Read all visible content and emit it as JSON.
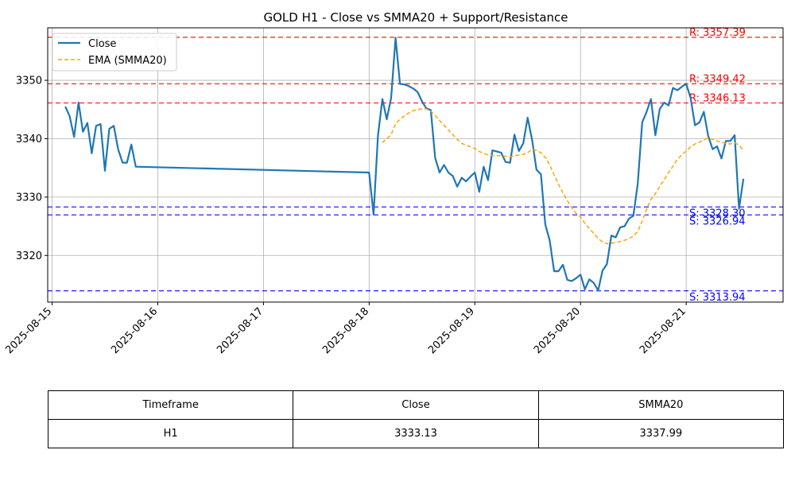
{
  "chart_data": {
    "type": "line",
    "title": "GOLD H1 - Close vs SMMA20 + Support/Resistance",
    "xlabel": "",
    "ylabel": "",
    "ylim": [
      3312,
      3359
    ],
    "xlim": [
      "2025-08-14T23:00",
      "2025-08-21T22:00"
    ],
    "x_ticks": [
      "2025-08-15",
      "2025-08-16",
      "2025-08-17",
      "2025-08-18",
      "2025-08-19",
      "2025-08-20",
      "2025-08-21"
    ],
    "y_ticks": [
      3320,
      3330,
      3340,
      3350
    ],
    "grid": true,
    "legend_position": "upper-left",
    "series": [
      {
        "name": "Close",
        "color": "#1f77b4",
        "style": "solid",
        "points": [
          [
            "2025-08-15T03:00",
            3345.5
          ],
          [
            "2025-08-15T04:00",
            3343.8
          ],
          [
            "2025-08-15T05:00",
            3340.3
          ],
          [
            "2025-08-15T06:00",
            3346.2
          ],
          [
            "2025-08-15T07:00",
            3341.2
          ],
          [
            "2025-08-15T08:00",
            3342.7
          ],
          [
            "2025-08-15T09:00",
            3337.5
          ],
          [
            "2025-08-15T10:00",
            3342.2
          ],
          [
            "2025-08-15T11:00",
            3342.5
          ],
          [
            "2025-08-15T12:00",
            3334.5
          ],
          [
            "2025-08-15T13:00",
            3341.7
          ],
          [
            "2025-08-15T14:00",
            3342.2
          ],
          [
            "2025-08-15T15:00",
            3338.2
          ],
          [
            "2025-08-15T16:00",
            3335.9
          ],
          [
            "2025-08-15T17:00",
            3335.9
          ],
          [
            "2025-08-15T18:00",
            3339.0
          ],
          [
            "2025-08-15T19:00",
            3335.2
          ],
          [
            "2025-08-18T00:00",
            3334.2
          ],
          [
            "2025-08-18T01:00",
            3327.0
          ],
          [
            "2025-08-18T02:00",
            3340.5
          ],
          [
            "2025-08-18T03:00",
            3346.8
          ],
          [
            "2025-08-18T04:00",
            3343.3
          ],
          [
            "2025-08-18T05:00",
            3347.0
          ],
          [
            "2025-08-18T06:00",
            3357.3
          ],
          [
            "2025-08-18T07:00",
            3349.4
          ],
          [
            "2025-08-18T08:00",
            3349.3
          ],
          [
            "2025-08-18T09:00",
            3349.0
          ],
          [
            "2025-08-18T10:00",
            3348.6
          ],
          [
            "2025-08-18T11:00",
            3348.0
          ],
          [
            "2025-08-18T12:00",
            3346.4
          ],
          [
            "2025-08-18T13:00",
            3345.2
          ],
          [
            "2025-08-18T14:00",
            3344.9
          ],
          [
            "2025-08-18T15:00",
            3336.7
          ],
          [
            "2025-08-18T16:00",
            3334.2
          ],
          [
            "2025-08-18T17:00",
            3335.5
          ],
          [
            "2025-08-18T18:00",
            3334.2
          ],
          [
            "2025-08-18T19:00",
            3333.6
          ],
          [
            "2025-08-18T20:00",
            3331.8
          ],
          [
            "2025-08-18T21:00",
            3333.3
          ],
          [
            "2025-08-18T22:00",
            3332.7
          ],
          [
            "2025-08-18T23:00",
            3333.5
          ],
          [
            "2025-08-19T00:00",
            3334.2
          ],
          [
            "2025-08-19T01:00",
            3330.9
          ],
          [
            "2025-08-19T02:00",
            3335.2
          ],
          [
            "2025-08-19T03:00",
            3332.9
          ],
          [
            "2025-08-19T04:00",
            3338.0
          ],
          [
            "2025-08-19T05:00",
            3337.8
          ],
          [
            "2025-08-19T06:00",
            3337.6
          ],
          [
            "2025-08-19T07:00",
            3336.0
          ],
          [
            "2025-08-19T08:00",
            3335.9
          ],
          [
            "2025-08-19T09:00",
            3340.7
          ],
          [
            "2025-08-19T10:00",
            3337.9
          ],
          [
            "2025-08-19T11:00",
            3339.2
          ],
          [
            "2025-08-19T12:00",
            3343.6
          ],
          [
            "2025-08-19T13:00",
            3339.8
          ],
          [
            "2025-08-19T14:00",
            3334.7
          ],
          [
            "2025-08-19T15:00",
            3333.9
          ],
          [
            "2025-08-19T16:00",
            3325.3
          ],
          [
            "2025-08-19T17:00",
            3322.6
          ],
          [
            "2025-08-19T18:00",
            3317.3
          ],
          [
            "2025-08-19T19:00",
            3317.3
          ],
          [
            "2025-08-19T20:00",
            3318.4
          ],
          [
            "2025-08-19T21:00",
            3315.8
          ],
          [
            "2025-08-19T22:00",
            3315.6
          ],
          [
            "2025-08-19T23:00",
            3316.1
          ],
          [
            "2025-08-20T00:00",
            3316.7
          ],
          [
            "2025-08-20T01:00",
            3314.2
          ],
          [
            "2025-08-20T02:00",
            3315.9
          ],
          [
            "2025-08-20T03:00",
            3315.3
          ],
          [
            "2025-08-20T04:00",
            3314.0
          ],
          [
            "2025-08-20T05:00",
            3317.4
          ],
          [
            "2025-08-20T06:00",
            3318.5
          ],
          [
            "2025-08-20T07:00",
            3323.4
          ],
          [
            "2025-08-20T08:00",
            3323.1
          ],
          [
            "2025-08-20T09:00",
            3324.8
          ],
          [
            "2025-08-20T10:00",
            3325.0
          ],
          [
            "2025-08-20T11:00",
            3326.3
          ],
          [
            "2025-08-20T12:00",
            3326.8
          ],
          [
            "2025-08-20T13:00",
            3332.3
          ],
          [
            "2025-08-20T14:00",
            3342.8
          ],
          [
            "2025-08-20T15:00",
            3344.6
          ],
          [
            "2025-08-20T16:00",
            3346.8
          ],
          [
            "2025-08-20T17:00",
            3340.6
          ],
          [
            "2025-08-20T18:00",
            3345.1
          ],
          [
            "2025-08-20T19:00",
            3346.2
          ],
          [
            "2025-08-20T20:00",
            3345.7
          ],
          [
            "2025-08-20T21:00",
            3348.7
          ],
          [
            "2025-08-20T22:00",
            3348.3
          ],
          [
            "2025-08-20T23:00",
            3348.9
          ],
          [
            "2025-08-21T00:00",
            3349.4
          ],
          [
            "2025-08-21T01:00",
            3347.0
          ],
          [
            "2025-08-21T02:00",
            3342.3
          ],
          [
            "2025-08-21T03:00",
            3342.8
          ],
          [
            "2025-08-21T04:00",
            3344.6
          ],
          [
            "2025-08-21T05:00",
            3340.5
          ],
          [
            "2025-08-21T06:00",
            3338.2
          ],
          [
            "2025-08-21T07:00",
            3338.7
          ],
          [
            "2025-08-21T08:00",
            3336.6
          ],
          [
            "2025-08-21T09:00",
            3339.6
          ],
          [
            "2025-08-21T10:00",
            3339.6
          ],
          [
            "2025-08-21T11:00",
            3340.6
          ],
          [
            "2025-08-21T12:00",
            3328.0
          ],
          [
            "2025-08-21T13:00",
            3333.13
          ]
        ]
      },
      {
        "name": "EMA (SMMA20)",
        "color": "#ffa500",
        "style": "dashed",
        "points": [
          [
            "2025-08-18T03:00",
            3339.3
          ],
          [
            "2025-08-18T04:00",
            3340.0
          ],
          [
            "2025-08-18T05:00",
            3340.7
          ],
          [
            "2025-08-18T06:00",
            3342.6
          ],
          [
            "2025-08-18T07:00",
            3343.3
          ],
          [
            "2025-08-18T08:00",
            3343.9
          ],
          [
            "2025-08-18T09:00",
            3344.4
          ],
          [
            "2025-08-18T10:00",
            3344.8
          ],
          [
            "2025-08-18T11:00",
            3345.0
          ],
          [
            "2025-08-18T12:00",
            3345.1
          ],
          [
            "2025-08-18T13:00",
            3345.1
          ],
          [
            "2025-08-18T14:00",
            3344.7
          ],
          [
            "2025-08-18T15:00",
            3344.0
          ],
          [
            "2025-08-18T16:00",
            3343.1
          ],
          [
            "2025-08-18T17:00",
            3342.3
          ],
          [
            "2025-08-18T18:00",
            3341.5
          ],
          [
            "2025-08-18T19:00",
            3340.7
          ],
          [
            "2025-08-18T20:00",
            3339.9
          ],
          [
            "2025-08-18T21:00",
            3339.2
          ],
          [
            "2025-08-18T22:00",
            3338.9
          ],
          [
            "2025-08-18T23:00",
            3338.6
          ],
          [
            "2025-08-19T00:00",
            3338.3
          ],
          [
            "2025-08-19T01:00",
            3337.8
          ],
          [
            "2025-08-19T02:00",
            3337.5
          ],
          [
            "2025-08-19T03:00",
            3337.2
          ],
          [
            "2025-08-19T04:00",
            3337.1
          ],
          [
            "2025-08-19T05:00",
            3337.1
          ],
          [
            "2025-08-19T06:00",
            3337.1
          ],
          [
            "2025-08-19T07:00",
            3337.0
          ],
          [
            "2025-08-19T08:00",
            3336.9
          ],
          [
            "2025-08-19T09:00",
            3337.1
          ],
          [
            "2025-08-19T10:00",
            3337.2
          ],
          [
            "2025-08-19T11:00",
            3337.3
          ],
          [
            "2025-08-19T12:00",
            3337.6
          ],
          [
            "2025-08-19T13:00",
            3338.2
          ],
          [
            "2025-08-19T14:00",
            3338.0
          ],
          [
            "2025-08-19T15:00",
            3337.6
          ],
          [
            "2025-08-19T16:00",
            3336.8
          ],
          [
            "2025-08-19T17:00",
            3335.5
          ],
          [
            "2025-08-19T18:00",
            3333.8
          ],
          [
            "2025-08-19T19:00",
            3332.2
          ],
          [
            "2025-08-19T20:00",
            3330.7
          ],
          [
            "2025-08-19T21:00",
            3329.4
          ],
          [
            "2025-08-19T22:00",
            3328.2
          ],
          [
            "2025-08-19T23:00",
            3327.2
          ],
          [
            "2025-08-20T00:00",
            3326.6
          ],
          [
            "2025-08-20T01:00",
            3325.5
          ],
          [
            "2025-08-20T02:00",
            3324.6
          ],
          [
            "2025-08-20T03:00",
            3323.8
          ],
          [
            "2025-08-20T04:00",
            3322.9
          ],
          [
            "2025-08-20T05:00",
            3322.3
          ],
          [
            "2025-08-20T06:00",
            3322.0
          ],
          [
            "2025-08-20T07:00",
            3322.1
          ],
          [
            "2025-08-20T08:00",
            3322.2
          ],
          [
            "2025-08-20T09:00",
            3322.4
          ],
          [
            "2025-08-20T10:00",
            3322.6
          ],
          [
            "2025-08-20T11:00",
            3322.9
          ],
          [
            "2025-08-20T12:00",
            3323.3
          ],
          [
            "2025-08-20T13:00",
            3324.1
          ],
          [
            "2025-08-20T14:00",
            3325.9
          ],
          [
            "2025-08-20T15:00",
            3327.9
          ],
          [
            "2025-08-20T16:00",
            3329.6
          ],
          [
            "2025-08-20T17:00",
            3330.6
          ],
          [
            "2025-08-20T18:00",
            3331.8
          ],
          [
            "2025-08-20T19:00",
            3333.0
          ],
          [
            "2025-08-20T20:00",
            3334.2
          ],
          [
            "2025-08-20T21:00",
            3335.3
          ],
          [
            "2025-08-20T22:00",
            3336.5
          ],
          [
            "2025-08-20T23:00",
            3337.2
          ],
          [
            "2025-08-21T00:00",
            3337.9
          ],
          [
            "2025-08-21T01:00",
            3338.6
          ],
          [
            "2025-08-21T02:00",
            3339.1
          ],
          [
            "2025-08-21T03:00",
            3339.4
          ],
          [
            "2025-08-21T04:00",
            3339.8
          ],
          [
            "2025-08-21T05:00",
            3340.1
          ],
          [
            "2025-08-21T06:00",
            3339.9
          ],
          [
            "2025-08-21T07:00",
            3339.6
          ],
          [
            "2025-08-21T08:00",
            3339.4
          ],
          [
            "2025-08-21T09:00",
            3339.2
          ],
          [
            "2025-08-21T10:00",
            3339.1
          ],
          [
            "2025-08-21T11:00",
            3339.3
          ],
          [
            "2025-08-21T12:00",
            3338.9
          ],
          [
            "2025-08-21T13:00",
            3337.99
          ]
        ]
      }
    ],
    "hlines": [
      {
        "label": "R: 3357.39",
        "value": 3357.39,
        "color": "#ff0000",
        "kind": "resistance"
      },
      {
        "label": "R: 3349.42",
        "value": 3349.42,
        "color": "#ff0000",
        "kind": "resistance"
      },
      {
        "label": "R: 3346.13",
        "value": 3346.13,
        "color": "#ff0000",
        "kind": "resistance"
      },
      {
        "label": "S: 3328.30",
        "value": 3328.3,
        "color": "#0000ff",
        "kind": "support"
      },
      {
        "label": "S: 3326.94",
        "value": 3326.94,
        "color": "#0000ff",
        "kind": "support"
      },
      {
        "label": "S: 3313.94",
        "value": 3313.94,
        "color": "#0000ff",
        "kind": "support"
      }
    ]
  },
  "table": {
    "headers": [
      "Timeframe",
      "Close",
      "SMMA20"
    ],
    "rows": [
      [
        "H1",
        "3333.13",
        "3337.99"
      ]
    ]
  }
}
